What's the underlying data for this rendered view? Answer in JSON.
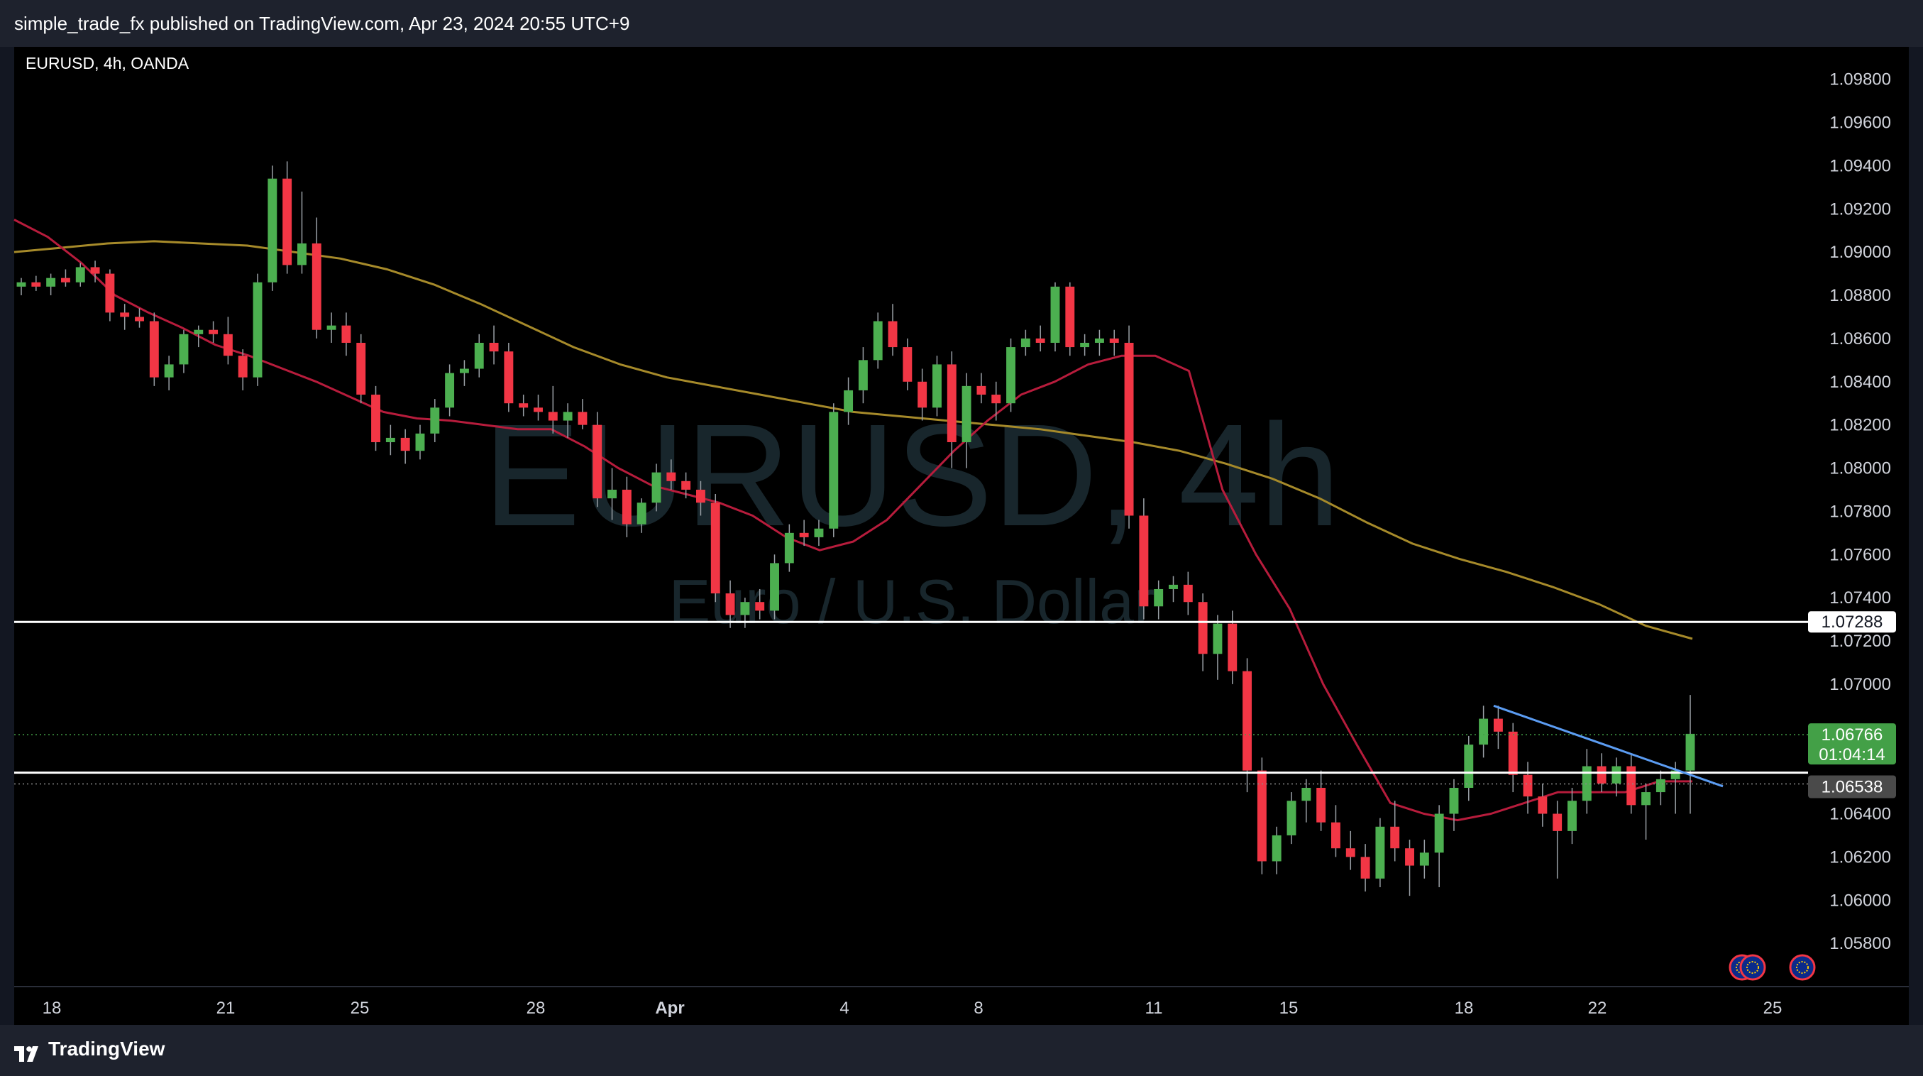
{
  "header": {
    "publish_text": "simple_trade_fx published on TradingView.com, Apr 23, 2024 20:55 UTC+9"
  },
  "footer": {
    "brand": "TradingView"
  },
  "chart_data": {
    "type": "candlestick",
    "title": "EURUSD, 4h, OANDA",
    "watermark_symbol": "EURUSD, 4h",
    "watermark_name": "Euro / U.S. Dollar",
    "y_ticks": [
      "1.09800",
      "1.09600",
      "1.09400",
      "1.09200",
      "1.09000",
      "1.08800",
      "1.08600",
      "1.08400",
      "1.08200",
      "1.08000",
      "1.07800",
      "1.07600",
      "1.07400",
      "1.07200",
      "1.07000",
      "1.06400",
      "1.06200",
      "1.06000",
      "1.05800"
    ],
    "y_range": [
      1.056,
      1.0995
    ],
    "x_ticks": [
      "18",
      "21",
      "25",
      "28",
      "Apr",
      "4",
      "8",
      "11",
      "15",
      "18",
      "22",
      "25"
    ],
    "horizontal_levels": [
      {
        "price": 1.07288,
        "label": "1.07288",
        "color": "#ffffff"
      },
      {
        "price": 1.0659,
        "label": "",
        "color": "#ffffff"
      }
    ],
    "current_price": {
      "value": "1.06766",
      "countdown": "01:04:14",
      "color": "#43a047"
    },
    "bid_price": {
      "value": "1.06538",
      "color": "#4a4a4a"
    },
    "colors": {
      "up": "#4caf50",
      "down": "#f23645",
      "ema_fast": "#b71c3c",
      "ma_slow": "#a68a2a",
      "trendline": "#5b9cf2"
    },
    "trendline": [
      [
        1.069,
        0
      ],
      [
        1.0656,
        1
      ]
    ],
    "ema_fast": [
      1.0915,
      1.0907,
      1.0895,
      1.088,
      1.0872,
      1.0865,
      1.0857,
      1.0852,
      1.0846,
      1.084,
      1.0833,
      1.0826,
      1.0823,
      1.0822,
      1.082,
      1.0818,
      1.0818,
      1.081,
      1.08,
      1.0792,
      1.0788,
      1.0784,
      1.0778,
      1.0768,
      1.0762,
      1.0766,
      1.0776,
      1.0792,
      1.0808,
      1.0822,
      1.0834,
      1.084,
      1.0848,
      1.0852,
      1.0852,
      1.0845,
      1.079,
      1.076,
      1.0735,
      1.07,
      1.0672,
      1.0645,
      1.064,
      1.0637,
      1.064,
      1.0645,
      1.065,
      1.065,
      1.065,
      1.0655,
      1.0655
    ],
    "ma_slow": [
      1.09,
      1.0902,
      1.0904,
      1.0905,
      1.0904,
      1.0903,
      1.09,
      1.0897,
      1.0892,
      1.0885,
      1.0876,
      1.0866,
      1.0856,
      1.0848,
      1.0842,
      1.0838,
      1.0834,
      1.083,
      1.0826,
      1.0824,
      1.0822,
      1.082,
      1.0818,
      1.0815,
      1.0812,
      1.0808,
      1.0802,
      1.0795,
      1.0786,
      1.0775,
      1.0765,
      1.0758,
      1.0752,
      1.0745,
      1.0737,
      1.0727,
      1.0721
    ],
    "candles": [
      [
        1.0884,
        1.0888,
        1.088,
        1.0886
      ],
      [
        1.0886,
        1.0889,
        1.0882,
        1.0884
      ],
      [
        1.0884,
        1.089,
        1.088,
        1.0888
      ],
      [
        1.0888,
        1.0892,
        1.0884,
        1.0886
      ],
      [
        1.0886,
        1.0895,
        1.0884,
        1.0893
      ],
      [
        1.0893,
        1.0896,
        1.0886,
        1.089
      ],
      [
        1.089,
        1.0892,
        1.0868,
        1.0872
      ],
      [
        1.0872,
        1.0876,
        1.0864,
        1.087
      ],
      [
        1.087,
        1.0874,
        1.0865,
        1.0868
      ],
      [
        1.0868,
        1.0872,
        1.0838,
        1.0842
      ],
      [
        1.0842,
        1.0852,
        1.0836,
        1.0848
      ],
      [
        1.0848,
        1.0864,
        1.0844,
        1.0862
      ],
      [
        1.0862,
        1.0866,
        1.0856,
        1.0864
      ],
      [
        1.0864,
        1.0868,
        1.0858,
        1.0862
      ],
      [
        1.0862,
        1.087,
        1.0848,
        1.0852
      ],
      [
        1.0852,
        1.0855,
        1.0836,
        1.0842
      ],
      [
        1.0842,
        1.089,
        1.0838,
        1.0886
      ],
      [
        1.0886,
        1.094,
        1.0882,
        1.0934
      ],
      [
        1.0934,
        1.0942,
        1.089,
        1.0894
      ],
      [
        1.0894,
        1.0928,
        1.089,
        1.0904
      ],
      [
        1.0904,
        1.0916,
        1.086,
        1.0864
      ],
      [
        1.0864,
        1.0872,
        1.0858,
        1.0866
      ],
      [
        1.0866,
        1.0872,
        1.0852,
        1.0858
      ],
      [
        1.0858,
        1.0862,
        1.083,
        1.0834
      ],
      [
        1.0834,
        1.0838,
        1.0808,
        1.0812
      ],
      [
        1.0812,
        1.082,
        1.0806,
        1.0814
      ],
      [
        1.0814,
        1.0818,
        1.0802,
        1.0808
      ],
      [
        1.0808,
        1.082,
        1.0804,
        1.0816
      ],
      [
        1.0816,
        1.0832,
        1.0812,
        1.0828
      ],
      [
        1.0828,
        1.0848,
        1.0824,
        1.0844
      ],
      [
        1.0844,
        1.085,
        1.0838,
        1.0846
      ],
      [
        1.0846,
        1.0862,
        1.0842,
        1.0858
      ],
      [
        1.0858,
        1.0866,
        1.0848,
        1.0854
      ],
      [
        1.0854,
        1.0858,
        1.0826,
        1.083
      ],
      [
        1.083,
        1.0834,
        1.0824,
        1.0828
      ],
      [
        1.0828,
        1.0834,
        1.0822,
        1.0826
      ],
      [
        1.0826,
        1.0838,
        1.0816,
        1.0822
      ],
      [
        1.0822,
        1.083,
        1.0814,
        1.0826
      ],
      [
        1.0826,
        1.0832,
        1.0818,
        1.082
      ],
      [
        1.082,
        1.0826,
        1.0782,
        1.0786
      ],
      [
        1.0786,
        1.08,
        1.0776,
        1.079
      ],
      [
        1.079,
        1.0796,
        1.0768,
        1.0774
      ],
      [
        1.0774,
        1.0786,
        1.077,
        1.0784
      ],
      [
        1.0784,
        1.0802,
        1.078,
        1.0798
      ],
      [
        1.0798,
        1.0804,
        1.079,
        1.0794
      ],
      [
        1.0794,
        1.0798,
        1.0786,
        1.079
      ],
      [
        1.079,
        1.0794,
        1.0778,
        1.0784
      ],
      [
        1.0784,
        1.0788,
        1.0738,
        1.0742
      ],
      [
        1.0742,
        1.0748,
        1.0726,
        1.0732
      ],
      [
        1.0732,
        1.074,
        1.0726,
        1.0738
      ],
      [
        1.0738,
        1.0744,
        1.073,
        1.0734
      ],
      [
        1.0734,
        1.076,
        1.073,
        1.0756
      ],
      [
        1.0756,
        1.0774,
        1.0752,
        1.077
      ],
      [
        1.077,
        1.0776,
        1.0764,
        1.0768
      ],
      [
        1.0768,
        1.0776,
        1.0764,
        1.0772
      ],
      [
        1.0772,
        1.083,
        1.0768,
        1.0826
      ],
      [
        1.0826,
        1.0842,
        1.082,
        1.0836
      ],
      [
        1.0836,
        1.0856,
        1.083,
        1.085
      ],
      [
        1.085,
        1.0872,
        1.0846,
        1.0868
      ],
      [
        1.0868,
        1.0876,
        1.0852,
        1.0856
      ],
      [
        1.0856,
        1.086,
        1.0836,
        1.084
      ],
      [
        1.084,
        1.0846,
        1.0822,
        1.0828
      ],
      [
        1.0828,
        1.0852,
        1.0824,
        1.0848
      ],
      [
        1.0848,
        1.0854,
        1.08,
        1.0812
      ],
      [
        1.0812,
        1.0844,
        1.08,
        1.0838
      ],
      [
        1.0838,
        1.0844,
        1.083,
        1.0834
      ],
      [
        1.0834,
        1.084,
        1.0822,
        1.083
      ],
      [
        1.083,
        1.086,
        1.0826,
        1.0856
      ],
      [
        1.0856,
        1.0864,
        1.0852,
        1.086
      ],
      [
        1.086,
        1.0866,
        1.0854,
        1.0858
      ],
      [
        1.0858,
        1.0886,
        1.0854,
        1.0884
      ],
      [
        1.0884,
        1.0886,
        1.0852,
        1.0856
      ],
      [
        1.0856,
        1.0862,
        1.0852,
        1.0858
      ],
      [
        1.0858,
        1.0864,
        1.0852,
        1.086
      ],
      [
        1.086,
        1.0864,
        1.0852,
        1.0858
      ],
      [
        1.0858,
        1.0866,
        1.0772,
        1.0778
      ],
      [
        1.0778,
        1.0786,
        1.073,
        1.0736
      ],
      [
        1.0736,
        1.0748,
        1.073,
        1.0744
      ],
      [
        1.0744,
        1.075,
        1.0738,
        1.0746
      ],
      [
        1.0746,
        1.0752,
        1.0732,
        1.0738
      ],
      [
        1.0738,
        1.0742,
        1.0706,
        1.0714
      ],
      [
        1.0714,
        1.0732,
        1.0702,
        1.0728
      ],
      [
        1.0728,
        1.0734,
        1.07,
        1.0706
      ],
      [
        1.0706,
        1.0712,
        1.065,
        1.066
      ],
      [
        1.066,
        1.0666,
        1.0612,
        1.0618
      ],
      [
        1.0618,
        1.0634,
        1.0612,
        1.063
      ],
      [
        1.063,
        1.065,
        1.0626,
        1.0646
      ],
      [
        1.0646,
        1.0656,
        1.0636,
        1.0652
      ],
      [
        1.0652,
        1.066,
        1.0632,
        1.0636
      ],
      [
        1.0636,
        1.0644,
        1.062,
        1.0624
      ],
      [
        1.0624,
        1.0632,
        1.0614,
        1.062
      ],
      [
        1.062,
        1.0626,
        1.0604,
        1.061
      ],
      [
        1.061,
        1.0638,
        1.0606,
        1.0634
      ],
      [
        1.0634,
        1.0646,
        1.0618,
        1.0624
      ],
      [
        1.0624,
        1.0628,
        1.0602,
        1.0616
      ],
      [
        1.0616,
        1.0628,
        1.061,
        1.0622
      ],
      [
        1.0622,
        1.0644,
        1.0606,
        1.064
      ],
      [
        1.064,
        1.0656,
        1.0632,
        1.0652
      ],
      [
        1.0652,
        1.0676,
        1.0646,
        1.0672
      ],
      [
        1.0672,
        1.069,
        1.0666,
        1.0684
      ],
      [
        1.0684,
        1.069,
        1.067,
        1.0678
      ],
      [
        1.0678,
        1.0682,
        1.065,
        1.0658
      ],
      [
        1.0658,
        1.0664,
        1.064,
        1.0648
      ],
      [
        1.0648,
        1.0654,
        1.0634,
        1.064
      ],
      [
        1.064,
        1.0646,
        1.061,
        1.0632
      ],
      [
        1.0632,
        1.0652,
        1.0626,
        1.0646
      ],
      [
        1.0646,
        1.067,
        1.064,
        1.0662
      ],
      [
        1.0662,
        1.0668,
        1.065,
        1.0654
      ],
      [
        1.0654,
        1.0666,
        1.0648,
        1.0662
      ],
      [
        1.0662,
        1.0668,
        1.064,
        1.0644
      ],
      [
        1.0644,
        1.0654,
        1.0628,
        1.065
      ],
      [
        1.065,
        1.066,
        1.0644,
        1.0656
      ],
      [
        1.0656,
        1.0664,
        1.064,
        1.066
      ],
      [
        1.066,
        1.0695,
        1.064,
        1.0677
      ]
    ]
  }
}
